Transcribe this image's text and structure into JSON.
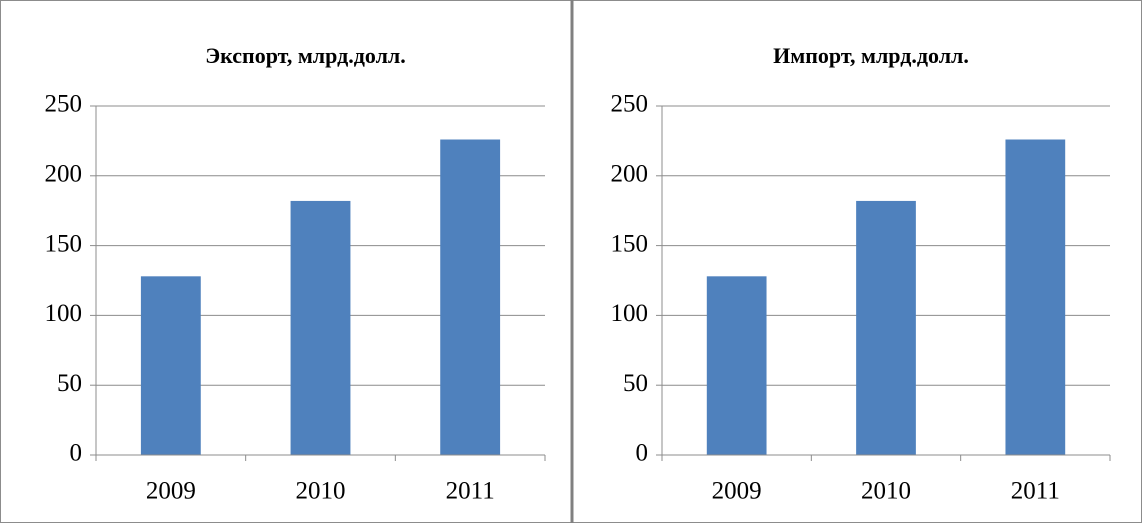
{
  "chart_data": [
    {
      "type": "bar",
      "title": "Экспорт,  млрд.долл.",
      "categories": [
        "2009",
        "2010",
        "2011"
      ],
      "values": [
        128,
        182,
        226
      ],
      "color": "#4f81bd",
      "ylim": [
        0,
        250
      ],
      "yticks": [
        0,
        50,
        100,
        150,
        200,
        250
      ],
      "grid": true
    },
    {
      "type": "bar",
      "title": "Импорт,  млрд.долл.",
      "categories": [
        "2009",
        "2010",
        "2011"
      ],
      "values": [
        128,
        182,
        226
      ],
      "color": "#4f81bd",
      "ylim": [
        0,
        250
      ],
      "yticks": [
        0,
        50,
        100,
        150,
        200,
        250
      ],
      "grid": true
    }
  ]
}
